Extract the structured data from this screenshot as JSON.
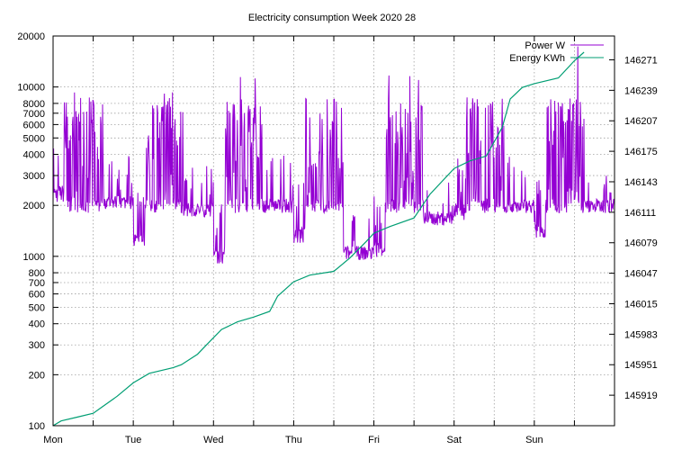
{
  "chart_data": {
    "type": "line",
    "title": "Electricity consumption Week 2020 28",
    "x_categories": [
      "Mon",
      "Tue",
      "Wed",
      "Thu",
      "Fri",
      "Sat",
      "Sun"
    ],
    "y_scale": "log",
    "ylim": [
      100,
      20000
    ],
    "y_ticks": [
      100,
      200,
      300,
      400,
      500,
      600,
      700,
      800,
      1000,
      2000,
      3000,
      4000,
      5000,
      6000,
      7000,
      8000,
      10000,
      20000
    ],
    "y2lim": [
      145887,
      146296
    ],
    "y2_ticks": [
      145919,
      145951,
      145983,
      146015,
      146047,
      146079,
      146111,
      146143,
      146175,
      146207,
      146239,
      146271
    ],
    "grid": true,
    "legend_position": "top-right",
    "series": [
      {
        "name": "Power W",
        "axis": "y",
        "color": "#9400d3",
        "day_profile": {
          "night_base": [
            2300,
            1200,
            1000,
            1300,
            1100,
            1800,
            1400
          ],
          "evening_base": [
            2000,
            1800,
            1900,
            1000,
            1600,
            1900,
            1900
          ],
          "peak": [
            9000,
            9000,
            12000,
            12000,
            12000,
            9000,
            17000
          ]
        }
      },
      {
        "name": "Energy KWh",
        "axis": "y2",
        "color": "#009e73",
        "x": [
          0,
          0.1,
          0.3,
          0.5,
          0.6,
          0.8,
          1.0,
          1.2,
          1.5,
          1.6,
          1.8,
          1.95,
          2.1,
          2.3,
          2.5,
          2.7,
          2.8,
          3.0,
          3.2,
          3.5,
          3.7,
          3.9,
          4.0,
          4.2,
          4.5,
          4.7,
          5.0,
          5.2,
          5.4,
          5.5,
          5.6,
          5.7,
          5.85,
          6.0,
          6.3,
          6.5,
          6.62
        ],
        "y": [
          145887,
          145892,
          145896,
          145900,
          145906,
          145918,
          145932,
          145942,
          145948,
          145951,
          145962,
          145975,
          145988,
          145996,
          146001,
          146007,
          146023,
          146038,
          146045,
          146049,
          146063,
          146080,
          146089,
          146096,
          146105,
          146130,
          146157,
          146165,
          146170,
          146185,
          146200,
          146230,
          146242,
          146246,
          146252,
          146270,
          146279
        ]
      }
    ]
  }
}
